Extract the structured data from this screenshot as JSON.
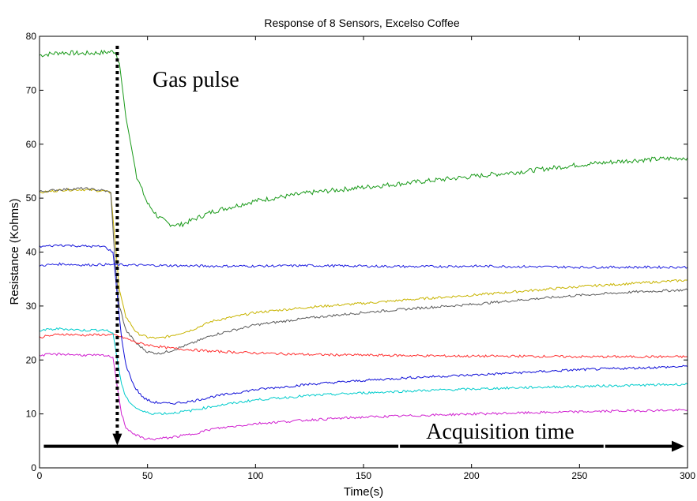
{
  "chart_data": {
    "type": "line",
    "title": "Response of 8 Sensors, Excelso Coffee",
    "xlabel": "Time(s)",
    "ylabel": "Resistance (Kohms)",
    "xlim": [
      0,
      300
    ],
    "ylim": [
      0,
      80
    ],
    "xticks": [
      0,
      50,
      100,
      150,
      200,
      250,
      300
    ],
    "yticks": [
      0,
      10,
      20,
      30,
      40,
      50,
      60,
      70,
      80
    ],
    "grid": false,
    "annotations": [
      {
        "text": "Gas pulse",
        "x": 36
      },
      {
        "text": "Acquisition time",
        "y": 4
      }
    ],
    "series": [
      {
        "color": "#1a9a1a",
        "points": [
          [
            0,
            76.5
          ],
          [
            10,
            77.0
          ],
          [
            20,
            76.8
          ],
          [
            30,
            77.0
          ],
          [
            35,
            77.2
          ],
          [
            37,
            75
          ],
          [
            40,
            65
          ],
          [
            45,
            54
          ],
          [
            50,
            49
          ],
          [
            55,
            46.5
          ],
          [
            60,
            45.2
          ],
          [
            65,
            45.0
          ],
          [
            70,
            45.8
          ],
          [
            80,
            47.5
          ],
          [
            100,
            49.5
          ],
          [
            125,
            51.0
          ],
          [
            150,
            52.0
          ],
          [
            175,
            53.0
          ],
          [
            200,
            54.0
          ],
          [
            225,
            55.0
          ],
          [
            250,
            56.2
          ],
          [
            275,
            57.0
          ],
          [
            300,
            57.5
          ]
        ]
      },
      {
        "color": "#c8b400",
        "points": [
          [
            0,
            51.0
          ],
          [
            10,
            51.5
          ],
          [
            20,
            51.6
          ],
          [
            30,
            51.3
          ],
          [
            33,
            51.0
          ],
          [
            35,
            42
          ],
          [
            37,
            33
          ],
          [
            40,
            28
          ],
          [
            45,
            25
          ],
          [
            50,
            24.2
          ],
          [
            55,
            24.0
          ],
          [
            60,
            24.4
          ],
          [
            70,
            25.5
          ],
          [
            80,
            27.2
          ],
          [
            100,
            28.8
          ],
          [
            125,
            29.8
          ],
          [
            150,
            30.5
          ],
          [
            175,
            31.3
          ],
          [
            200,
            32.0
          ],
          [
            225,
            32.8
          ],
          [
            250,
            33.6
          ],
          [
            275,
            34.2
          ],
          [
            300,
            34.8
          ]
        ]
      },
      {
        "color": "#5a5a5a",
        "points": [
          [
            0,
            51.2
          ],
          [
            10,
            51.6
          ],
          [
            20,
            51.8
          ],
          [
            30,
            51.4
          ],
          [
            33,
            51.0
          ],
          [
            35,
            38
          ],
          [
            37,
            30
          ],
          [
            40,
            25.5
          ],
          [
            45,
            23.0
          ],
          [
            50,
            21.5
          ],
          [
            55,
            21.2
          ],
          [
            60,
            21.6
          ],
          [
            70,
            23.0
          ],
          [
            80,
            24.6
          ],
          [
            100,
            26.5
          ],
          [
            125,
            27.8
          ],
          [
            150,
            28.8
          ],
          [
            175,
            29.6
          ],
          [
            200,
            30.3
          ],
          [
            225,
            31.2
          ],
          [
            250,
            32.0
          ],
          [
            275,
            32.6
          ],
          [
            300,
            33.0
          ]
        ]
      },
      {
        "color": "#2020e0",
        "points": [
          [
            0,
            37.5
          ],
          [
            10,
            37.8
          ],
          [
            20,
            37.6
          ],
          [
            30,
            37.7
          ],
          [
            40,
            37.6
          ],
          [
            60,
            37.5
          ],
          [
            80,
            37.4
          ],
          [
            100,
            37.4
          ],
          [
            125,
            37.5
          ],
          [
            150,
            37.4
          ],
          [
            175,
            37.3
          ],
          [
            200,
            37.4
          ],
          [
            225,
            37.3
          ],
          [
            250,
            37.2
          ],
          [
            275,
            37.2
          ],
          [
            300,
            37.2
          ]
        ]
      },
      {
        "color": "#ff3030",
        "points": [
          [
            0,
            24.2
          ],
          [
            10,
            24.8
          ],
          [
            20,
            24.6
          ],
          [
            30,
            24.7
          ],
          [
            35,
            24.6
          ],
          [
            40,
            24.0
          ],
          [
            45,
            23.2
          ],
          [
            50,
            22.8
          ],
          [
            60,
            22.2
          ],
          [
            70,
            21.9
          ],
          [
            80,
            21.6
          ],
          [
            100,
            21.3
          ],
          [
            125,
            21.0
          ],
          [
            150,
            20.9
          ],
          [
            175,
            20.8
          ],
          [
            200,
            20.7
          ],
          [
            225,
            20.7
          ],
          [
            250,
            20.6
          ],
          [
            275,
            20.6
          ],
          [
            300,
            20.6
          ]
        ]
      },
      {
        "color": "#1010d8",
        "points": [
          [
            0,
            41.0
          ],
          [
            10,
            41.3
          ],
          [
            20,
            41.1
          ],
          [
            30,
            41.0
          ],
          [
            34,
            40.0
          ],
          [
            36,
            32
          ],
          [
            38,
            24
          ],
          [
            40,
            19
          ],
          [
            44,
            15
          ],
          [
            48,
            13
          ],
          [
            52,
            12.2
          ],
          [
            60,
            11.9
          ],
          [
            70,
            12.3
          ],
          [
            80,
            13.2
          ],
          [
            100,
            14.5
          ],
          [
            125,
            15.5
          ],
          [
            150,
            16.2
          ],
          [
            175,
            16.8
          ],
          [
            200,
            17.2
          ],
          [
            225,
            17.7
          ],
          [
            250,
            18.2
          ],
          [
            275,
            18.5
          ],
          [
            300,
            18.8
          ]
        ]
      },
      {
        "color": "#00cccc",
        "points": [
          [
            0,
            25.5
          ],
          [
            10,
            25.8
          ],
          [
            20,
            25.5
          ],
          [
            30,
            25.6
          ],
          [
            34,
            25.0
          ],
          [
            36,
            20
          ],
          [
            38,
            15.5
          ],
          [
            40,
            13.0
          ],
          [
            44,
            11.3
          ],
          [
            48,
            10.4
          ],
          [
            52,
            10.1
          ],
          [
            60,
            10.1
          ],
          [
            70,
            10.6
          ],
          [
            80,
            11.4
          ],
          [
            100,
            12.6
          ],
          [
            125,
            13.4
          ],
          [
            150,
            13.9
          ],
          [
            175,
            14.3
          ],
          [
            200,
            14.6
          ],
          [
            225,
            14.9
          ],
          [
            250,
            15.1
          ],
          [
            275,
            15.3
          ],
          [
            300,
            15.5
          ]
        ]
      },
      {
        "color": "#d020d0",
        "points": [
          [
            0,
            20.9
          ],
          [
            10,
            21.1
          ],
          [
            20,
            20.9
          ],
          [
            30,
            20.8
          ],
          [
            34,
            20.5
          ],
          [
            36,
            15
          ],
          [
            38,
            10
          ],
          [
            40,
            7.5
          ],
          [
            44,
            6.2
          ],
          [
            48,
            5.5
          ],
          [
            52,
            5.3
          ],
          [
            60,
            5.6
          ],
          [
            70,
            6.2
          ],
          [
            80,
            7.2
          ],
          [
            100,
            8.2
          ],
          [
            125,
            8.9
          ],
          [
            150,
            9.4
          ],
          [
            175,
            9.7
          ],
          [
            200,
            10.0
          ],
          [
            225,
            10.2
          ],
          [
            250,
            10.4
          ],
          [
            275,
            10.6
          ],
          [
            300,
            10.7
          ]
        ]
      }
    ]
  }
}
